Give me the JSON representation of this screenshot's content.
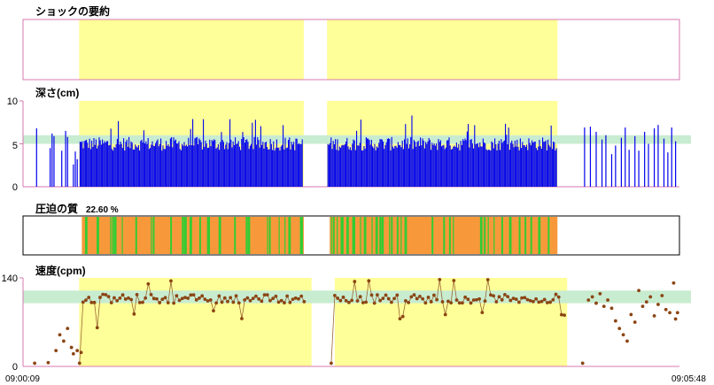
{
  "panels": {
    "shock": {
      "title": "ショックの要約"
    },
    "depth": {
      "title": "深さ(cm)",
      "ymax_label": "10",
      "ymid_label": "5",
      "ymin_label": "0"
    },
    "quality": {
      "title": "圧迫の質",
      "value": "22.60 %"
    },
    "rate": {
      "title": "速度(cpm)",
      "ymax_label": "140",
      "ymin_label": "0"
    }
  },
  "x_axis": {
    "start_label": "09:00:09",
    "end_label": "09:05:48"
  },
  "colors": {
    "highlight_yellow": "#ffff99",
    "target_band_green": "#c8ecd0",
    "depth_bar_blue": "#0000ee",
    "quality_orange": "#f7993a",
    "quality_green": "#33cc33",
    "rate_point_brown": "#8b4513",
    "rate_line_brown": "#996633",
    "frame_pink": "#d77ab0"
  },
  "chart_data": [
    {
      "id": "shock-summary",
      "type": "area",
      "title": "ショックの要約",
      "x_range_seconds": [
        0,
        339
      ],
      "compression_intervals_s": [
        [
          29,
          145
        ],
        [
          157,
          276
        ]
      ]
    },
    {
      "id": "depth",
      "type": "bar",
      "title": "深さ(cm)",
      "ylim": [
        0,
        10
      ],
      "yticks": [
        0,
        5,
        10
      ],
      "target_band": [
        5,
        6
      ],
      "x_range_seconds": [
        0,
        339
      ],
      "highlight_intervals_s": [
        [
          29,
          145
        ],
        [
          157,
          276
        ]
      ],
      "sparse_before": [
        [
          7,
          6.8
        ],
        [
          14,
          4.5
        ],
        [
          15,
          6.2
        ],
        [
          16,
          5.9
        ],
        [
          20,
          4.2
        ],
        [
          22,
          6.5
        ],
        [
          23,
          5.8
        ],
        [
          26,
          2.6
        ],
        [
          27,
          4.1
        ],
        [
          28,
          3.2
        ]
      ],
      "sparse_after": [
        [
          290,
          6.9
        ],
        [
          293,
          7.0
        ],
        [
          296,
          6.4
        ],
        [
          299,
          5.5
        ],
        [
          301,
          6.0
        ],
        [
          304,
          3.8
        ],
        [
          306,
          4.8
        ],
        [
          309,
          5.7
        ],
        [
          311,
          6.9
        ],
        [
          313,
          4.3
        ],
        [
          316,
          5.9
        ],
        [
          318,
          4.2
        ],
        [
          321,
          6.4
        ],
        [
          323,
          5.0
        ],
        [
          326,
          6.8
        ],
        [
          328,
          7.2
        ],
        [
          331,
          5.6
        ],
        [
          333,
          4.0
        ],
        [
          335,
          6.9
        ],
        [
          337,
          5.3
        ]
      ],
      "cluster_intervals_s": [
        [
          29,
          145
        ],
        [
          157,
          276
        ]
      ],
      "cluster_mean": 5.0,
      "cluster_range": [
        3.8,
        8.3
      ]
    },
    {
      "id": "quality",
      "type": "bar",
      "title": "圧迫の質",
      "value_label": "22.60 %",
      "x_range_seconds": [
        0,
        339
      ],
      "orange_intervals_s": [
        [
          29,
          145
        ],
        [
          157,
          276
        ]
      ],
      "green_marks_s": [
        32,
        38,
        45,
        46,
        47,
        51,
        58,
        66,
        67,
        76,
        82,
        83,
        84,
        86,
        91,
        95,
        96,
        101,
        109,
        115,
        116,
        126,
        127,
        132,
        135,
        137,
        143,
        144,
        159,
        160,
        162,
        164,
        165,
        167,
        170,
        171,
        174,
        176,
        180,
        182,
        184,
        185,
        189,
        190,
        193,
        195,
        197,
        211,
        217,
        220,
        222,
        236,
        238,
        240,
        243,
        247,
        251,
        256,
        259,
        262,
        266,
        271
      ]
    },
    {
      "id": "rate",
      "type": "scatter",
      "title": "速度(cpm)",
      "ylim": [
        0,
        140
      ],
      "yticks": [
        0,
        140
      ],
      "target_band": [
        100,
        120
      ],
      "x_range_seconds": [
        0,
        339
      ],
      "highlight_intervals_s": [
        [
          29,
          149
        ],
        [
          161,
          281
        ]
      ],
      "points_before": [
        [
          6,
          5
        ],
        [
          13,
          6
        ],
        [
          17,
          25
        ],
        [
          19,
          50
        ],
        [
          21,
          40
        ],
        [
          23,
          60
        ],
        [
          25,
          30
        ],
        [
          26,
          20
        ],
        [
          28,
          25
        ],
        [
          30,
          22
        ]
      ],
      "points_after": [
        [
          292,
          105
        ],
        [
          294,
          110
        ],
        [
          296,
          100
        ],
        [
          298,
          115
        ],
        [
          300,
          95
        ],
        [
          302,
          105
        ],
        [
          304,
          92
        ],
        [
          306,
          72
        ],
        [
          308,
          60
        ],
        [
          310,
          50
        ],
        [
          312,
          40
        ],
        [
          314,
          82
        ],
        [
          316,
          70
        ],
        [
          318,
          120
        ],
        [
          320,
          95
        ],
        [
          322,
          102
        ],
        [
          324,
          110
        ],
        [
          326,
          80
        ],
        [
          328,
          98
        ],
        [
          330,
          112
        ],
        [
          332,
          90
        ],
        [
          334,
          85
        ],
        [
          336,
          132
        ],
        [
          337,
          75
        ],
        [
          338,
          85
        ],
        [
          289,
          5
        ]
      ],
      "cluster_intervals_s": [
        [
          31,
          147
        ],
        [
          161,
          281
        ]
      ],
      "cluster_mean": 107,
      "cluster_range": [
        60,
        140
      ]
    }
  ]
}
